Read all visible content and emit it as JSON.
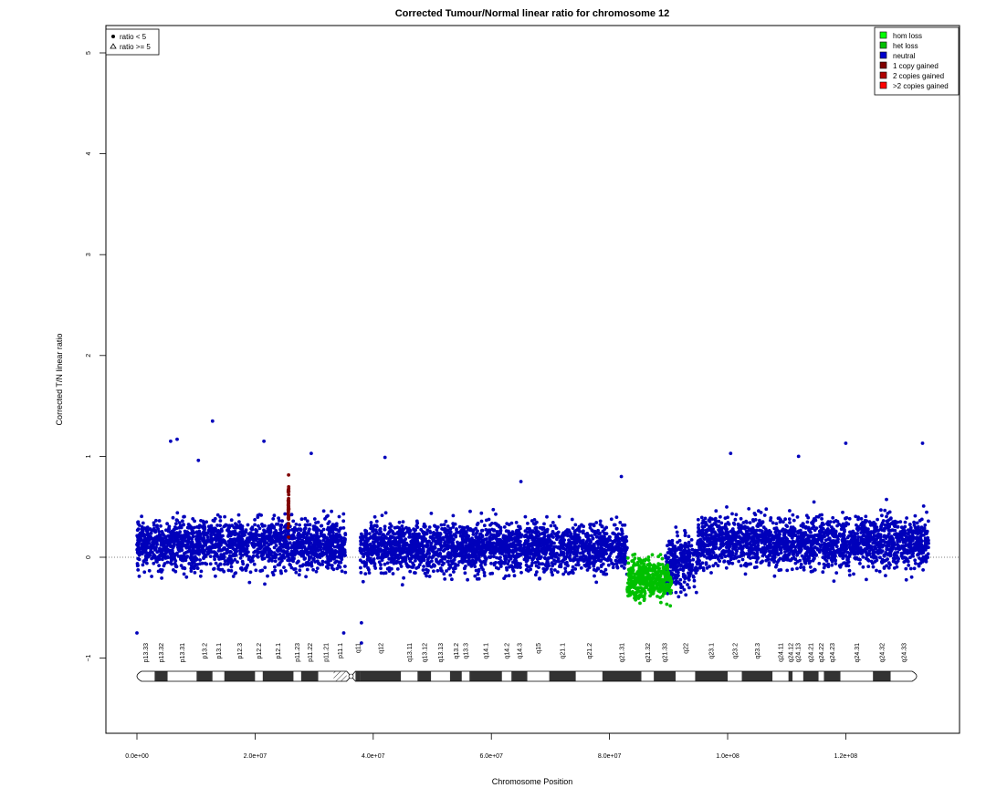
{
  "chart_data": {
    "type": "scatter",
    "title": "Corrected Tumour/Normal linear ratio for chromosome  12",
    "xlabel": "Chromosome Position",
    "ylabel": "Corrected T/N linear ratio",
    "xlim": [
      0,
      134000000
    ],
    "ylim": [
      -1.75,
      5.2
    ],
    "x_ticks": [
      0,
      20000000,
      40000000,
      60000000,
      80000000,
      100000000,
      120000000
    ],
    "x_tick_labels": [
      "0.0e+00",
      "2.0e+07",
      "4.0e+07",
      "6.0e+07",
      "8.0e+07",
      "1.0e+08",
      "1.2e+08"
    ],
    "y_ticks": [
      -1,
      0,
      1,
      2,
      3,
      4,
      5
    ],
    "y_tick_labels": [
      "−1",
      "0",
      "1",
      "2",
      "3",
      "4",
      "5"
    ],
    "reference_line": 0,
    "series": [
      {
        "name": "neutral",
        "color": "#0000bb",
        "segments": [
          {
            "x_start": 0,
            "x_end": 35300000,
            "center": 0.13,
            "spread": 0.42
          },
          {
            "x_start": 37800000,
            "x_end": 83000000,
            "center": 0.1,
            "spread": 0.4
          },
          {
            "x_start": 89400000,
            "x_end": 95000000,
            "center": -0.05,
            "spread": 0.45
          },
          {
            "x_start": 95000000,
            "x_end": 134000000,
            "center": 0.15,
            "spread": 0.42
          }
        ]
      },
      {
        "name": "het loss",
        "color": "#00c000",
        "segments": [
          {
            "x_start": 83000000,
            "x_end": 90500000,
            "center": -0.22,
            "spread": 0.34
          }
        ]
      },
      {
        "name": "1 copy gained",
        "color": "#800000",
        "segments": [
          {
            "x_start": 25600000,
            "x_end": 25700000,
            "center": 0.5,
            "spread": 0.45
          }
        ]
      }
    ],
    "outliers": [
      {
        "x": 12800000,
        "y": 1.35
      },
      {
        "x": 6800000,
        "y": 1.17
      },
      {
        "x": 5700000,
        "y": 1.15
      },
      {
        "x": 21500000,
        "y": 1.15
      },
      {
        "x": 29500000,
        "y": 1.03
      },
      {
        "x": 42000000,
        "y": 0.99
      },
      {
        "x": 10400000,
        "y": 0.96
      },
      {
        "x": 120000000,
        "y": 1.13
      },
      {
        "x": 133000000,
        "y": 1.13
      },
      {
        "x": 112000000,
        "y": 1.0
      },
      {
        "x": 100500000,
        "y": 1.03
      },
      {
        "x": 0,
        "y": -0.75
      },
      {
        "x": 35000000,
        "y": -0.75
      },
      {
        "x": 38000000,
        "y": -0.85
      },
      {
        "x": 38000000,
        "y": -0.65
      },
      {
        "x": 65000000,
        "y": 0.75
      },
      {
        "x": 82000000,
        "y": 0.8
      }
    ],
    "bands": [
      {
        "name": "p13.33",
        "start": 0,
        "end": 3000000,
        "stain": "white"
      },
      {
        "name": "p13.32",
        "start": 3000000,
        "end": 5200000,
        "stain": "dark"
      },
      {
        "name": "p13.31",
        "start": 5200000,
        "end": 10100000,
        "stain": "white"
      },
      {
        "name": "p13.2",
        "start": 10100000,
        "end": 12800000,
        "stain": "dark"
      },
      {
        "name": "p13.1",
        "start": 12800000,
        "end": 14800000,
        "stain": "white"
      },
      {
        "name": "p12.3",
        "start": 14800000,
        "end": 20000000,
        "stain": "dark"
      },
      {
        "name": "p12.2",
        "start": 20000000,
        "end": 21300000,
        "stain": "white"
      },
      {
        "name": "p12.1",
        "start": 21300000,
        "end": 26500000,
        "stain": "dark"
      },
      {
        "name": "p11.23",
        "start": 26500000,
        "end": 27800000,
        "stain": "white"
      },
      {
        "name": "p11.22",
        "start": 27800000,
        "end": 30700000,
        "stain": "dark"
      },
      {
        "name": "p11.21",
        "start": 30700000,
        "end": 33300000,
        "stain": "white"
      },
      {
        "name": "p11.1",
        "start": 33300000,
        "end": 35500000,
        "stain": "hatch"
      },
      {
        "name": "q11",
        "start": 37000000,
        "end": 37800000,
        "stain": "dark"
      },
      {
        "name": "q12",
        "start": 37800000,
        "end": 44700000,
        "stain": "dark"
      },
      {
        "name": "q13.11",
        "start": 44700000,
        "end": 47500000,
        "stain": "white"
      },
      {
        "name": "q13.12",
        "start": 47500000,
        "end": 49800000,
        "stain": "dark"
      },
      {
        "name": "q13.13",
        "start": 49800000,
        "end": 53000000,
        "stain": "white"
      },
      {
        "name": "q13.2",
        "start": 53000000,
        "end": 55000000,
        "stain": "dark"
      },
      {
        "name": "q13.3",
        "start": 55000000,
        "end": 56300000,
        "stain": "white"
      },
      {
        "name": "q14.1",
        "start": 56300000,
        "end": 61800000,
        "stain": "dark"
      },
      {
        "name": "q14.2",
        "start": 61800000,
        "end": 63400000,
        "stain": "white"
      },
      {
        "name": "q14.3",
        "start": 63400000,
        "end": 66100000,
        "stain": "dark"
      },
      {
        "name": "q15",
        "start": 66100000,
        "end": 69800000,
        "stain": "white"
      },
      {
        "name": "q21.1",
        "start": 69800000,
        "end": 74300000,
        "stain": "dark"
      },
      {
        "name": "q21.2",
        "start": 74300000,
        "end": 78800000,
        "stain": "white"
      },
      {
        "name": "q21.31",
        "start": 78800000,
        "end": 85400000,
        "stain": "dark"
      },
      {
        "name": "q21.32",
        "start": 85400000,
        "end": 87500000,
        "stain": "white"
      },
      {
        "name": "q21.33",
        "start": 87500000,
        "end": 91200000,
        "stain": "dark"
      },
      {
        "name": "q22",
        "start": 91200000,
        "end": 94500000,
        "stain": "white"
      },
      {
        "name": "q23.1",
        "start": 94500000,
        "end": 100000000,
        "stain": "dark"
      },
      {
        "name": "q23.2",
        "start": 100000000,
        "end": 102400000,
        "stain": "white"
      },
      {
        "name": "q23.3",
        "start": 102400000,
        "end": 107600000,
        "stain": "dark"
      },
      {
        "name": "q24.11",
        "start": 107600000,
        "end": 110300000,
        "stain": "white"
      },
      {
        "name": "q24.12",
        "start": 110300000,
        "end": 111000000,
        "stain": "dark"
      },
      {
        "name": "q24.13",
        "start": 111000000,
        "end": 112800000,
        "stain": "white"
      },
      {
        "name": "q24.21",
        "start": 112800000,
        "end": 115400000,
        "stain": "dark"
      },
      {
        "name": "q24.22",
        "start": 115400000,
        "end": 116300000,
        "stain": "white"
      },
      {
        "name": "q24.23",
        "start": 116300000,
        "end": 119100000,
        "stain": "dark"
      },
      {
        "name": "q24.31",
        "start": 119100000,
        "end": 124600000,
        "stain": "white"
      },
      {
        "name": "q24.32",
        "start": 124600000,
        "end": 127600000,
        "stain": "dark"
      },
      {
        "name": "q24.33",
        "start": 127600000,
        "end": 132000000,
        "stain": "white"
      }
    ],
    "legend_colors": {
      "title": "",
      "placement": "top-right",
      "entries": [
        {
          "label": "hom loss",
          "color": "#00ff00"
        },
        {
          "label": "het loss",
          "color": "#00c000"
        },
        {
          "label": "neutral",
          "color": "#0000cc"
        },
        {
          "label": "1 copy gained",
          "color": "#800000"
        },
        {
          "label": "2 copies gained",
          "color": "#b00000"
        },
        {
          "label": ">2 copies gained",
          "color": "#ff0000"
        }
      ]
    },
    "legend_shapes": {
      "placement": "top-left",
      "entries": [
        {
          "label": "ratio < 5",
          "shape": "filled-circle"
        },
        {
          "label": "ratio >= 5",
          "shape": "open-triangle"
        }
      ]
    }
  }
}
